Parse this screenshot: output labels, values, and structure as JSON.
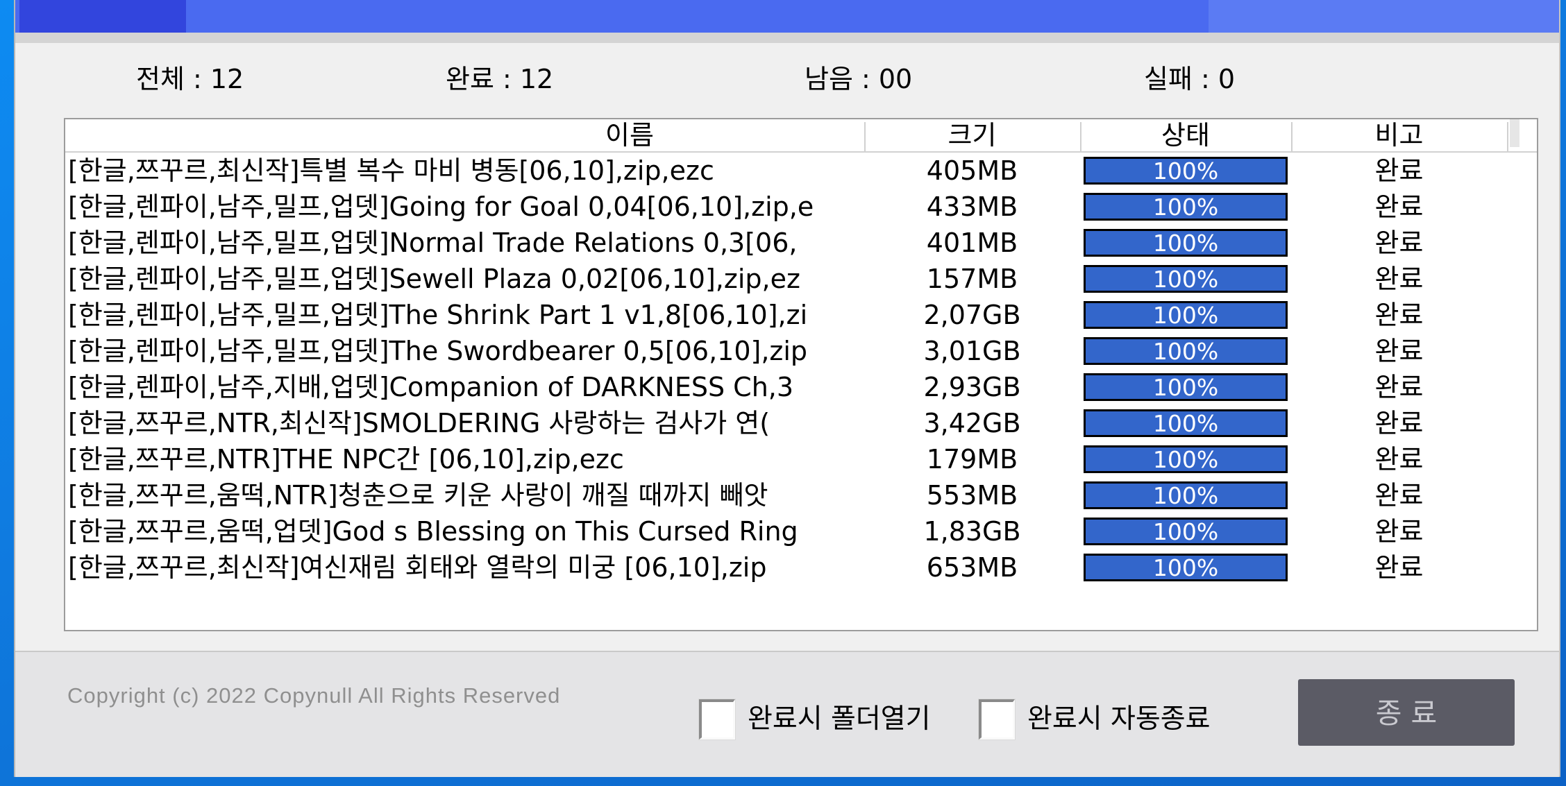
{
  "stats": [
    {
      "text": "전체 : 12"
    },
    {
      "text": "완료 : 12"
    },
    {
      "text": "남음 : 00"
    },
    {
      "text": "실패 : 0"
    }
  ],
  "table": {
    "columns": [
      "이름",
      "크기",
      "상태",
      "비고"
    ],
    "rows": [
      {
        "name": "[한글,쯔꾸르,최신작]특별 복수 마비 병동[06,10],zip,ezc",
        "size": "405MB",
        "progress_pct": 100,
        "progress_label": "100%",
        "remark": "완료"
      },
      {
        "name": "[한글,렌파이,남주,밀프,업뎃]Going for Goal 0,04[06,10],zip,e",
        "size": "433MB",
        "progress_pct": 100,
        "progress_label": "100%",
        "remark": "완료"
      },
      {
        "name": "[한글,렌파이,남주,밀프,업뎃]Normal Trade Relations 0,3[06,",
        "size": "401MB",
        "progress_pct": 100,
        "progress_label": "100%",
        "remark": "완료"
      },
      {
        "name": "[한글,렌파이,남주,밀프,업뎃]Sewell Plaza 0,02[06,10],zip,ez",
        "size": "157MB",
        "progress_pct": 100,
        "progress_label": "100%",
        "remark": "완료"
      },
      {
        "name": "[한글,렌파이,남주,밀프,업뎃]The Shrink Part 1 v1,8[06,10],zi",
        "size": "2,07GB",
        "progress_pct": 100,
        "progress_label": "100%",
        "remark": "완료"
      },
      {
        "name": "[한글,렌파이,남주,밀프,업뎃]The Swordbearer 0,5[06,10],zip",
        "size": "3,01GB",
        "progress_pct": 100,
        "progress_label": "100%",
        "remark": "완료"
      },
      {
        "name": "[한글,렌파이,남주,지배,업뎃]Companion of DARKNESS Ch,3",
        "size": "2,93GB",
        "progress_pct": 100,
        "progress_label": "100%",
        "remark": "완료"
      },
      {
        "name": "[한글,쯔꾸르,NTR,최신작]SMOLDERING 사랑하는 검사가 연(",
        "size": "3,42GB",
        "progress_pct": 100,
        "progress_label": "100%",
        "remark": "완료"
      },
      {
        "name": "[한글,쯔꾸르,NTR]THE NPC간 [06,10],zip,ezc",
        "size": "179MB",
        "progress_pct": 100,
        "progress_label": "100%",
        "remark": "완료"
      },
      {
        "name": "[한글,쯔꾸르,움떡,NTR]청춘으로 키운 사랑이 깨질 때까지 빼앗",
        "size": "553MB",
        "progress_pct": 100,
        "progress_label": "100%",
        "remark": "완료"
      },
      {
        "name": "[한글,쯔꾸르,움떡,업뎃]God s Blessing on This Cursed Ring",
        "size": "1,83GB",
        "progress_pct": 100,
        "progress_label": "100%",
        "remark": "완료"
      },
      {
        "name": "[한글,쯔꾸르,최신작]여신재림 회태와 열락의 미궁 [06,10],zip",
        "size": "653MB",
        "progress_pct": 100,
        "progress_label": "100%",
        "remark": "완료"
      }
    ]
  },
  "footer": {
    "copyright": "Copyright (c) 2022 Copynull All Rights Reserved",
    "checkbox_open_folder_label": "완료시 폴더열기",
    "checkbox_auto_exit_label": "완료시 자동종료",
    "exit_button_label": "종 료"
  },
  "colors": {
    "titlebar_blue": "#4a6af0",
    "titlebar_dark_blue": "#3245dd",
    "titlebar_light_blue": "#5b7bf3",
    "desktop_blue": "#0d86ec",
    "progress_fill_blue": "#3366cb",
    "progress_text": "#ffffff",
    "exit_button_gray": "#5b5b65",
    "copyright_gray": "#8f8f8f"
  }
}
